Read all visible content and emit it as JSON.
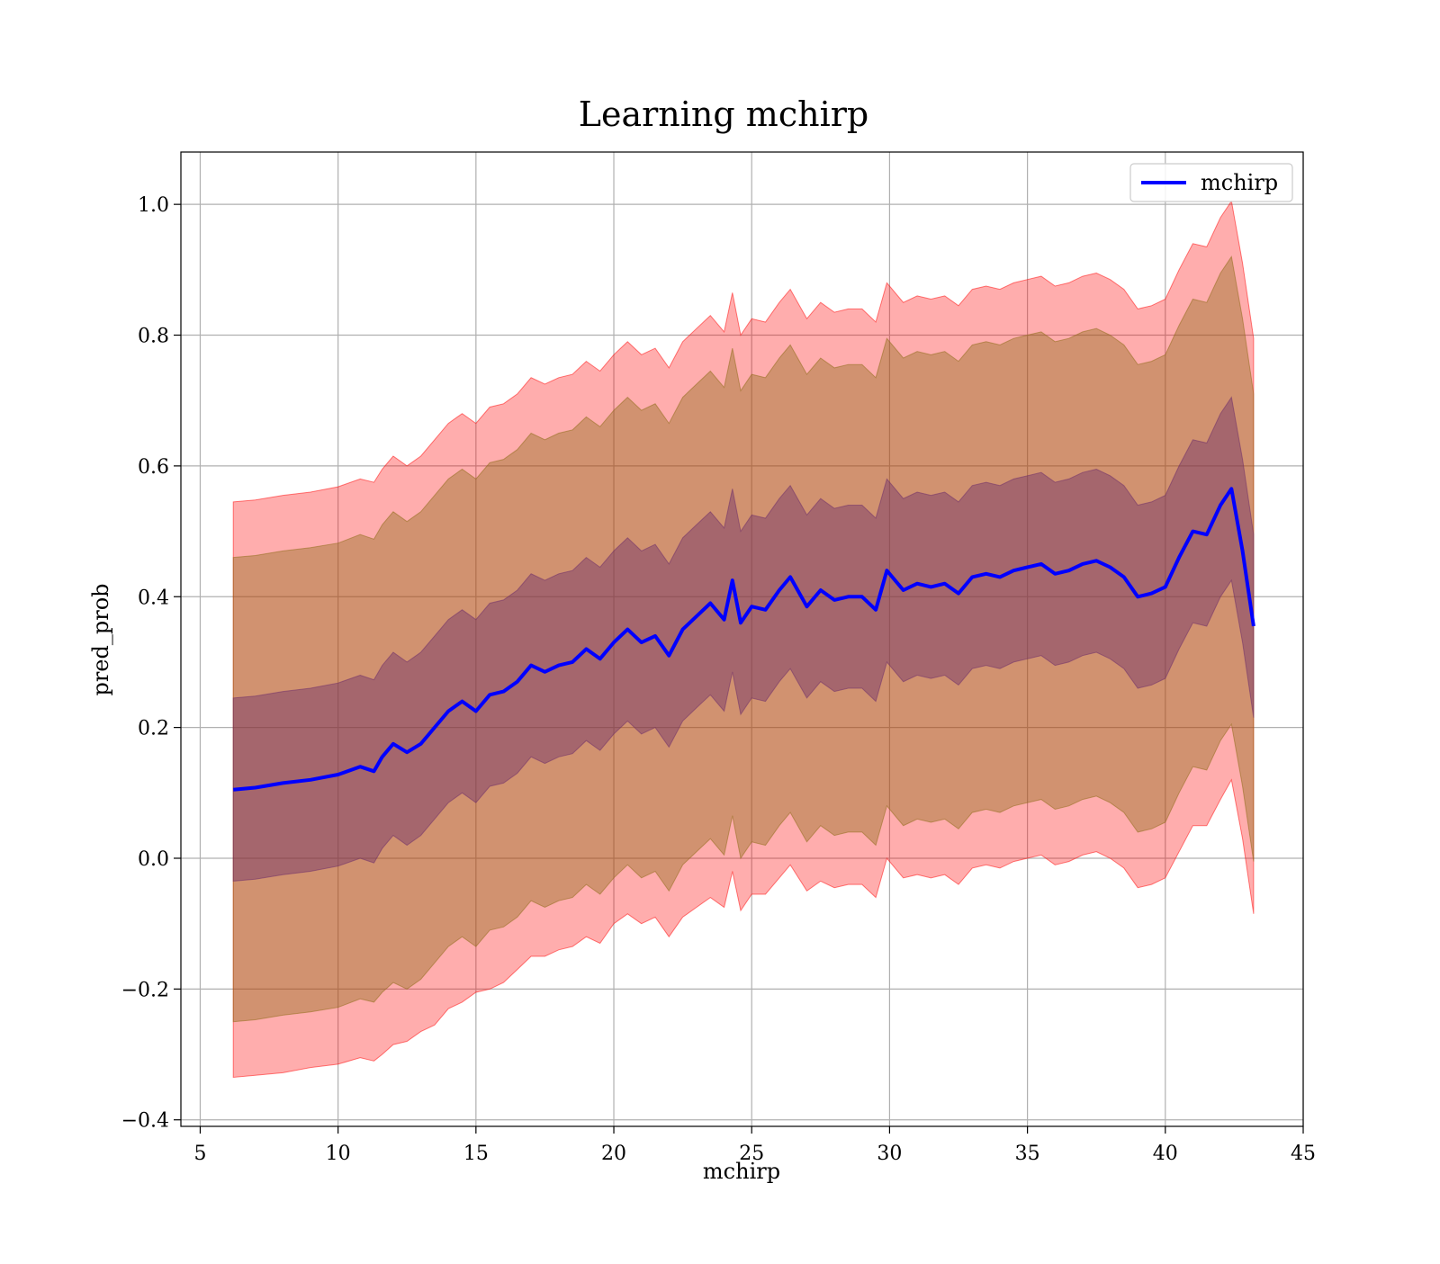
{
  "chart_data": {
    "type": "line",
    "title": "Learning mchirp",
    "xlabel": "mchirp",
    "ylabel": "pred_prob",
    "xlim": [
      4.3,
      45.0
    ],
    "ylim": [
      -0.41,
      1.08
    ],
    "grid": true,
    "legend_position": "top-right",
    "x_ticks": [
      5,
      10,
      15,
      20,
      25,
      30,
      35,
      40,
      45
    ],
    "y_ticks": [
      -0.4,
      -0.2,
      0.0,
      0.2,
      0.4,
      0.6,
      0.8,
      1.0
    ],
    "x_tick_labels": [
      "5",
      "10",
      "15",
      "20",
      "25",
      "30",
      "35",
      "40",
      "45"
    ],
    "y_tick_labels": [
      "−0.4",
      "−0.2",
      "0.0",
      "0.2",
      "0.4",
      "0.6",
      "0.8",
      "1.0"
    ],
    "colors": {
      "line": "#0000ff",
      "band_outer": "#ff0000",
      "band_middle": "#8b6914",
      "band_inner": "#6a2a6a",
      "grid": "#b0b0b0"
    },
    "series": [
      {
        "name": "mchirp",
        "x": [
          6.2,
          7.0,
          8.0,
          9.0,
          10.0,
          10.8,
          11.3,
          11.6,
          12.0,
          12.5,
          13.0,
          13.5,
          14.0,
          14.5,
          15.0,
          15.5,
          16.0,
          16.5,
          17.0,
          17.5,
          18.0,
          18.5,
          19.0,
          19.5,
          20.0,
          20.5,
          21.0,
          21.5,
          22.0,
          22.5,
          23.0,
          23.5,
          24.0,
          24.3,
          24.6,
          25.0,
          25.5,
          26.0,
          26.4,
          27.0,
          27.5,
          28.0,
          28.5,
          29.0,
          29.5,
          29.9,
          30.5,
          31.0,
          31.5,
          32.0,
          32.5,
          33.0,
          33.5,
          34.0,
          34.5,
          35.0,
          35.5,
          36.0,
          36.5,
          37.0,
          37.5,
          38.0,
          38.5,
          39.0,
          39.5,
          40.0,
          40.5,
          41.0,
          41.5,
          42.0,
          42.4,
          42.8,
          43.2
        ],
        "y": [
          0.105,
          0.108,
          0.115,
          0.12,
          0.128,
          0.14,
          0.133,
          0.155,
          0.175,
          0.162,
          0.175,
          0.2,
          0.225,
          0.24,
          0.225,
          0.25,
          0.255,
          0.27,
          0.295,
          0.285,
          0.295,
          0.3,
          0.32,
          0.305,
          0.33,
          0.35,
          0.33,
          0.34,
          0.31,
          0.35,
          0.37,
          0.39,
          0.365,
          0.425,
          0.36,
          0.385,
          0.38,
          0.41,
          0.43,
          0.385,
          0.41,
          0.395,
          0.4,
          0.4,
          0.38,
          0.44,
          0.41,
          0.42,
          0.415,
          0.42,
          0.405,
          0.43,
          0.435,
          0.43,
          0.44,
          0.445,
          0.45,
          0.435,
          0.44,
          0.45,
          0.455,
          0.445,
          0.43,
          0.4,
          0.405,
          0.415,
          0.46,
          0.5,
          0.495,
          0.54,
          0.565,
          0.47,
          0.355
        ]
      }
    ],
    "bands": [
      {
        "level": "outer",
        "lower": [
          -0.335,
          -0.332,
          -0.328,
          -0.32,
          -0.315,
          -0.305,
          -0.31,
          -0.3,
          -0.285,
          -0.28,
          -0.265,
          -0.255,
          -0.23,
          -0.22,
          -0.205,
          -0.2,
          -0.19,
          -0.17,
          -0.15,
          -0.15,
          -0.14,
          -0.135,
          -0.12,
          -0.13,
          -0.1,
          -0.085,
          -0.1,
          -0.09,
          -0.12,
          -0.09,
          -0.075,
          -0.06,
          -0.075,
          -0.02,
          -0.08,
          -0.055,
          -0.055,
          -0.03,
          -0.01,
          -0.05,
          -0.035,
          -0.045,
          -0.04,
          -0.04,
          -0.06,
          0.0,
          -0.03,
          -0.025,
          -0.03,
          -0.025,
          -0.04,
          -0.015,
          -0.01,
          -0.015,
          -0.005,
          0.0,
          0.005,
          -0.01,
          -0.005,
          0.005,
          0.01,
          0.0,
          -0.015,
          -0.045,
          -0.04,
          -0.03,
          0.01,
          0.05,
          0.05,
          0.09,
          0.12,
          0.03,
          -0.085
        ],
        "upper": [
          0.545,
          0.548,
          0.555,
          0.56,
          0.568,
          0.58,
          0.575,
          0.595,
          0.615,
          0.6,
          0.615,
          0.64,
          0.665,
          0.68,
          0.665,
          0.69,
          0.695,
          0.71,
          0.735,
          0.725,
          0.735,
          0.74,
          0.76,
          0.745,
          0.77,
          0.79,
          0.77,
          0.78,
          0.75,
          0.79,
          0.81,
          0.83,
          0.805,
          0.865,
          0.8,
          0.825,
          0.82,
          0.85,
          0.87,
          0.825,
          0.85,
          0.835,
          0.84,
          0.84,
          0.82,
          0.88,
          0.85,
          0.86,
          0.855,
          0.86,
          0.845,
          0.87,
          0.875,
          0.87,
          0.88,
          0.885,
          0.89,
          0.875,
          0.88,
          0.89,
          0.895,
          0.885,
          0.87,
          0.84,
          0.845,
          0.855,
          0.9,
          0.94,
          0.935,
          0.98,
          1.005,
          0.91,
          0.795
        ]
      },
      {
        "level": "middle",
        "lower": [
          -0.25,
          -0.247,
          -0.24,
          -0.235,
          -0.228,
          -0.215,
          -0.22,
          -0.205,
          -0.19,
          -0.2,
          -0.185,
          -0.16,
          -0.135,
          -0.12,
          -0.135,
          -0.11,
          -0.105,
          -0.09,
          -0.065,
          -0.075,
          -0.065,
          -0.06,
          -0.04,
          -0.055,
          -0.03,
          -0.01,
          -0.03,
          -0.02,
          -0.05,
          -0.01,
          0.01,
          0.03,
          0.005,
          0.065,
          0.0,
          0.025,
          0.02,
          0.05,
          0.07,
          0.025,
          0.05,
          0.035,
          0.04,
          0.04,
          0.02,
          0.08,
          0.05,
          0.06,
          0.055,
          0.06,
          0.045,
          0.07,
          0.075,
          0.07,
          0.08,
          0.085,
          0.09,
          0.075,
          0.08,
          0.09,
          0.095,
          0.085,
          0.07,
          0.04,
          0.045,
          0.055,
          0.1,
          0.14,
          0.135,
          0.18,
          0.205,
          0.11,
          -0.005
        ],
        "upper": [
          0.46,
          0.463,
          0.47,
          0.475,
          0.482,
          0.495,
          0.488,
          0.51,
          0.53,
          0.515,
          0.53,
          0.555,
          0.58,
          0.595,
          0.58,
          0.605,
          0.61,
          0.625,
          0.65,
          0.64,
          0.65,
          0.655,
          0.675,
          0.66,
          0.685,
          0.705,
          0.685,
          0.695,
          0.665,
          0.705,
          0.725,
          0.745,
          0.72,
          0.78,
          0.715,
          0.74,
          0.735,
          0.765,
          0.785,
          0.74,
          0.765,
          0.75,
          0.755,
          0.755,
          0.735,
          0.795,
          0.765,
          0.775,
          0.77,
          0.775,
          0.76,
          0.785,
          0.79,
          0.785,
          0.795,
          0.8,
          0.805,
          0.79,
          0.795,
          0.805,
          0.81,
          0.8,
          0.785,
          0.755,
          0.76,
          0.77,
          0.815,
          0.855,
          0.85,
          0.895,
          0.92,
          0.825,
          0.71
        ]
      },
      {
        "level": "inner",
        "lower": [
          -0.035,
          -0.032,
          -0.025,
          -0.02,
          -0.012,
          0.0,
          -0.007,
          0.015,
          0.035,
          0.02,
          0.035,
          0.06,
          0.085,
          0.1,
          0.085,
          0.11,
          0.115,
          0.13,
          0.155,
          0.145,
          0.155,
          0.16,
          0.18,
          0.165,
          0.19,
          0.21,
          0.19,
          0.2,
          0.17,
          0.21,
          0.23,
          0.25,
          0.225,
          0.285,
          0.22,
          0.245,
          0.24,
          0.27,
          0.29,
          0.245,
          0.27,
          0.255,
          0.26,
          0.26,
          0.24,
          0.3,
          0.27,
          0.28,
          0.275,
          0.28,
          0.265,
          0.29,
          0.295,
          0.29,
          0.3,
          0.305,
          0.31,
          0.295,
          0.3,
          0.31,
          0.315,
          0.305,
          0.29,
          0.26,
          0.265,
          0.275,
          0.32,
          0.36,
          0.355,
          0.4,
          0.425,
          0.33,
          0.215
        ],
        "upper": [
          0.245,
          0.248,
          0.255,
          0.26,
          0.268,
          0.28,
          0.273,
          0.295,
          0.315,
          0.3,
          0.315,
          0.34,
          0.365,
          0.38,
          0.365,
          0.39,
          0.395,
          0.41,
          0.435,
          0.425,
          0.435,
          0.44,
          0.46,
          0.445,
          0.47,
          0.49,
          0.47,
          0.48,
          0.45,
          0.49,
          0.51,
          0.53,
          0.505,
          0.565,
          0.5,
          0.525,
          0.52,
          0.55,
          0.57,
          0.525,
          0.55,
          0.535,
          0.54,
          0.54,
          0.52,
          0.58,
          0.55,
          0.56,
          0.555,
          0.56,
          0.545,
          0.57,
          0.575,
          0.57,
          0.58,
          0.585,
          0.59,
          0.575,
          0.58,
          0.59,
          0.595,
          0.585,
          0.57,
          0.54,
          0.545,
          0.555,
          0.6,
          0.64,
          0.635,
          0.68,
          0.705,
          0.61,
          0.495
        ]
      }
    ]
  }
}
